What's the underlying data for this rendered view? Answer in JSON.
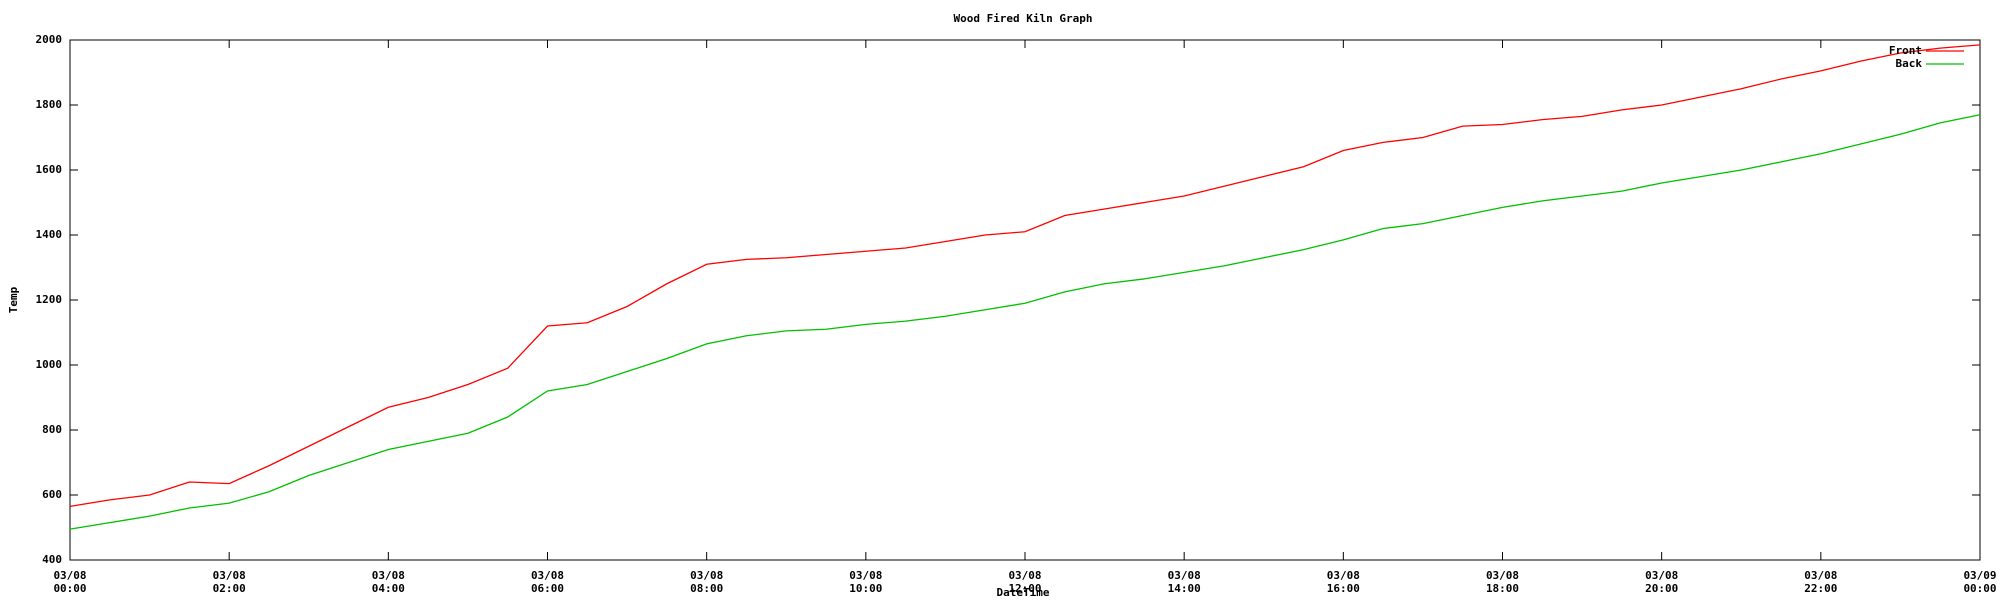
{
  "chart_data": {
    "type": "line",
    "title": "Wood Fired Kiln Graph",
    "x_label": "DateTime",
    "y_label": "Temp",
    "legend_position": "top-right",
    "x": [
      "03/08 00:00",
      "03/08 00:30",
      "03/08 01:00",
      "03/08 01:30",
      "03/08 02:00",
      "03/08 02:30",
      "03/08 03:00",
      "03/08 03:30",
      "03/08 04:00",
      "03/08 04:30",
      "03/08 05:00",
      "03/08 05:30",
      "03/08 06:00",
      "03/08 06:30",
      "03/08 07:00",
      "03/08 07:30",
      "03/08 08:00",
      "03/08 08:30",
      "03/08 09:00",
      "03/08 09:30",
      "03/08 10:00",
      "03/08 10:30",
      "03/08 11:00",
      "03/08 11:30",
      "03/08 12:00",
      "03/08 12:30",
      "03/08 13:00",
      "03/08 13:30",
      "03/08 14:00",
      "03/08 14:30",
      "03/08 15:00",
      "03/08 15:30",
      "03/08 16:00",
      "03/08 16:30",
      "03/08 17:00",
      "03/08 17:30",
      "03/08 18:00",
      "03/08 18:30",
      "03/08 19:00",
      "03/08 19:30",
      "03/08 20:00",
      "03/08 20:30",
      "03/08 21:00",
      "03/08 21:30",
      "03/08 22:00",
      "03/08 22:30",
      "03/08 23:00",
      "03/08 23:30",
      "03/09 00:00"
    ],
    "series": [
      {
        "name": "Front",
        "color": "#ff0000",
        "values": [
          565,
          585,
          600,
          640,
          635,
          690,
          750,
          810,
          870,
          900,
          940,
          990,
          1120,
          1130,
          1180,
          1250,
          1310,
          1325,
          1330,
          1340,
          1350,
          1360,
          1380,
          1400,
          1410,
          1460,
          1480,
          1500,
          1520,
          1550,
          1580,
          1610,
          1660,
          1685,
          1700,
          1735,
          1740,
          1755,
          1765,
          1785,
          1800,
          1825,
          1850,
          1880,
          1905,
          1935,
          1960,
          1975,
          1985
        ]
      },
      {
        "name": "Back",
        "color": "#00c000",
        "values": [
          495,
          515,
          535,
          560,
          575,
          610,
          660,
          700,
          740,
          765,
          790,
          840,
          920,
          940,
          980,
          1020,
          1065,
          1090,
          1105,
          1110,
          1125,
          1135,
          1150,
          1170,
          1190,
          1225,
          1250,
          1265,
          1285,
          1305,
          1330,
          1355,
          1385,
          1420,
          1435,
          1460,
          1485,
          1505,
          1520,
          1535,
          1560,
          1580,
          1600,
          1625,
          1650,
          1680,
          1710,
          1745,
          1770
        ]
      }
    ],
    "xlim": [
      "03/08 00:00",
      "03/09 00:00"
    ],
    "xticks": [
      "03/08 00:00",
      "03/08 02:00",
      "03/08 04:00",
      "03/08 06:00",
      "03/08 08:00",
      "03/08 10:00",
      "03/08 12:00",
      "03/08 14:00",
      "03/08 16:00",
      "03/08 18:00",
      "03/08 20:00",
      "03/08 22:00",
      "03/09 00:00"
    ],
    "ylim": [
      400,
      2000
    ],
    "yticks": [
      400,
      600,
      800,
      1000,
      1200,
      1400,
      1600,
      1800,
      2000
    ],
    "grid": false
  }
}
